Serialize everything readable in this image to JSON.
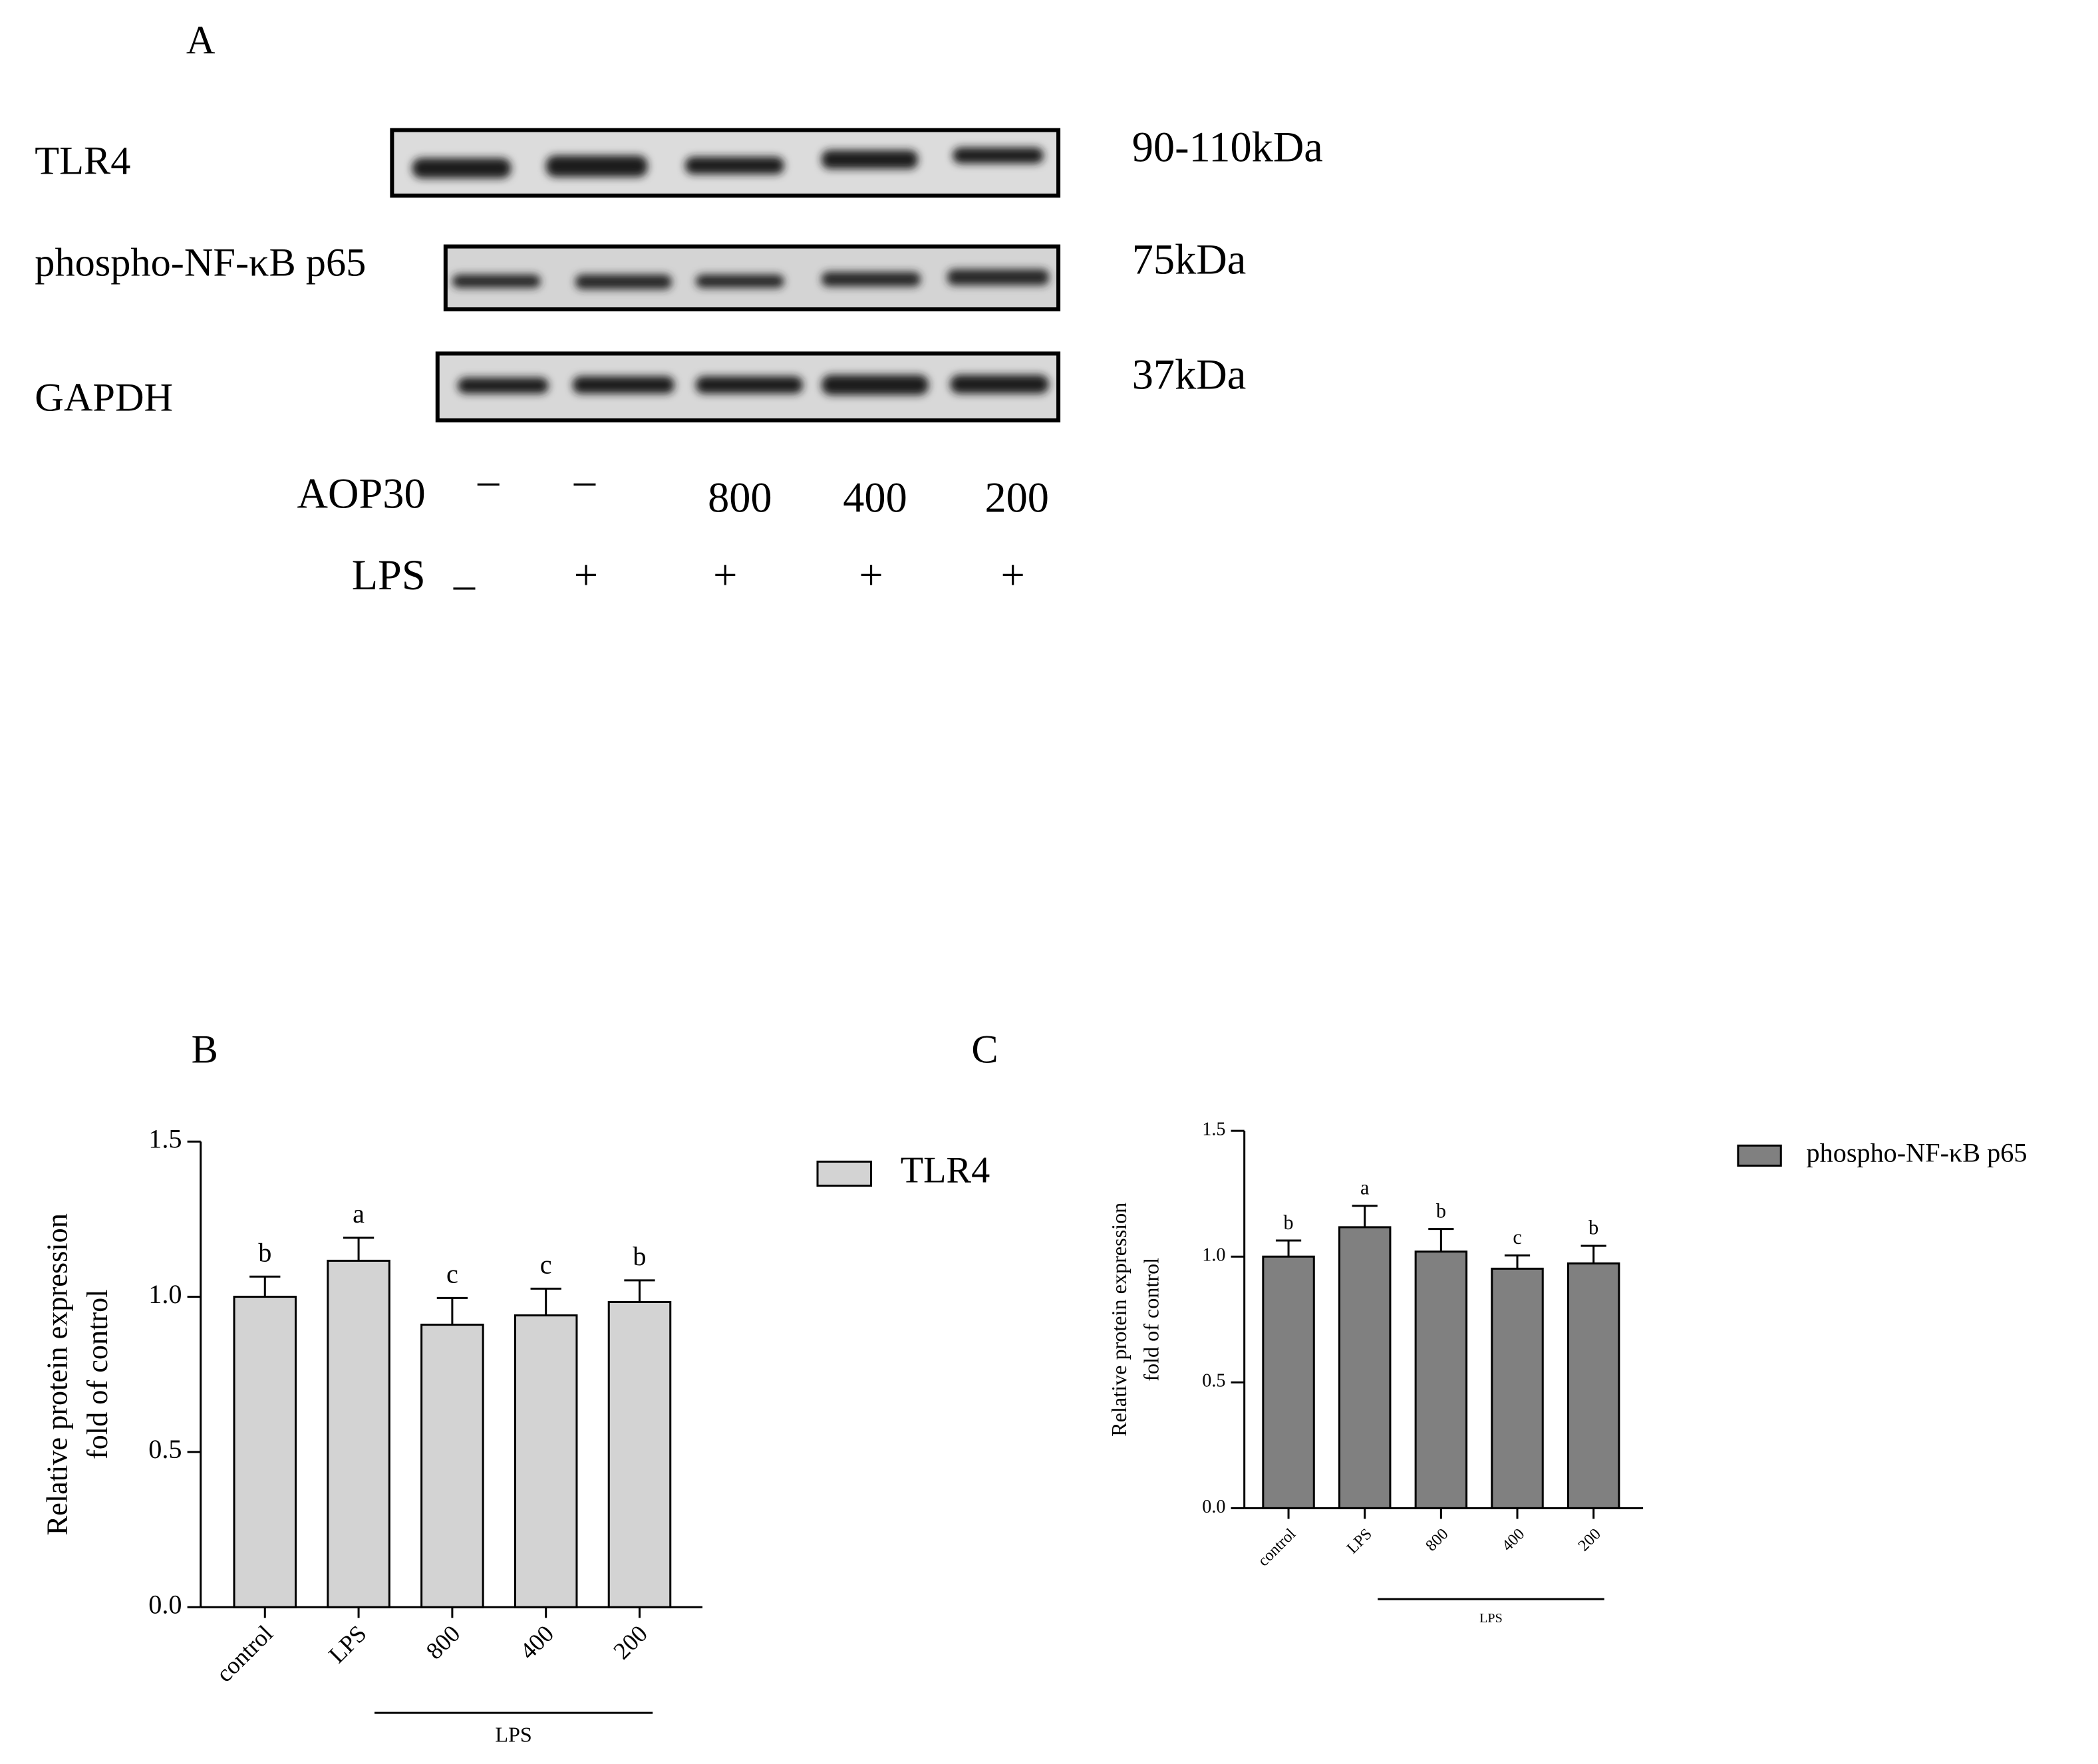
{
  "panel_a": {
    "label": "A",
    "proteins": [
      {
        "name": "TLR4",
        "size": "90-110kDa"
      },
      {
        "name": "phospho-NF-κB p65",
        "size": "75kDa"
      },
      {
        "name": "GAPDH",
        "size": "37kDa"
      }
    ],
    "treatments": [
      {
        "name": "AOP30",
        "values": [
          "–",
          "–",
          "800",
          "400",
          "200"
        ]
      },
      {
        "name": "LPS",
        "values": [
          "–",
          "+",
          "+",
          "+",
          "+"
        ]
      }
    ]
  },
  "chart_data": [
    {
      "type": "bar",
      "panel_label": "B",
      "ylabel": [
        "Relative protein expression",
        "fold of control"
      ],
      "categories": [
        "control",
        "LPS",
        "800",
        "400",
        "200"
      ],
      "group_label": "LPS",
      "series": [
        {
          "name": "TLR4",
          "color": "#d3d3d3",
          "values": [
            1.0,
            1.116,
            0.91,
            0.94,
            0.983
          ],
          "errors": [
            0.065,
            0.074,
            0.086,
            0.086,
            0.07
          ]
        }
      ],
      "annotations": [
        "b",
        "a",
        "c",
        "c",
        "b"
      ],
      "ylim": [
        0,
        1.5
      ],
      "yticks": [
        {
          "value": 0,
          "label": "0.0"
        },
        0.5,
        {
          "value": 1,
          "label": "1.0"
        },
        1.5
      ]
    },
    {
      "type": "bar",
      "panel_label": "C",
      "ylabel": [
        "Relative protein expression",
        "fold of control"
      ],
      "categories": [
        "control",
        "LPS",
        "800",
        "400",
        "200"
      ],
      "group_label": "LPS",
      "series": [
        {
          "name": "phospho-NF-κB p65",
          "color": "#808080",
          "values": [
            1.0,
            1.117,
            1.02,
            0.952,
            0.973
          ],
          "errors": [
            0.064,
            0.085,
            0.09,
            0.053,
            0.07
          ]
        }
      ],
      "annotations": [
        "b",
        "a",
        "b",
        "c",
        "b"
      ],
      "ylim": [
        0,
        1.5
      ],
      "yticks": [
        {
          "value": 0,
          "label": "0.0"
        },
        0.5,
        {
          "value": 1,
          "label": "1.0"
        },
        1.5
      ]
    }
  ]
}
